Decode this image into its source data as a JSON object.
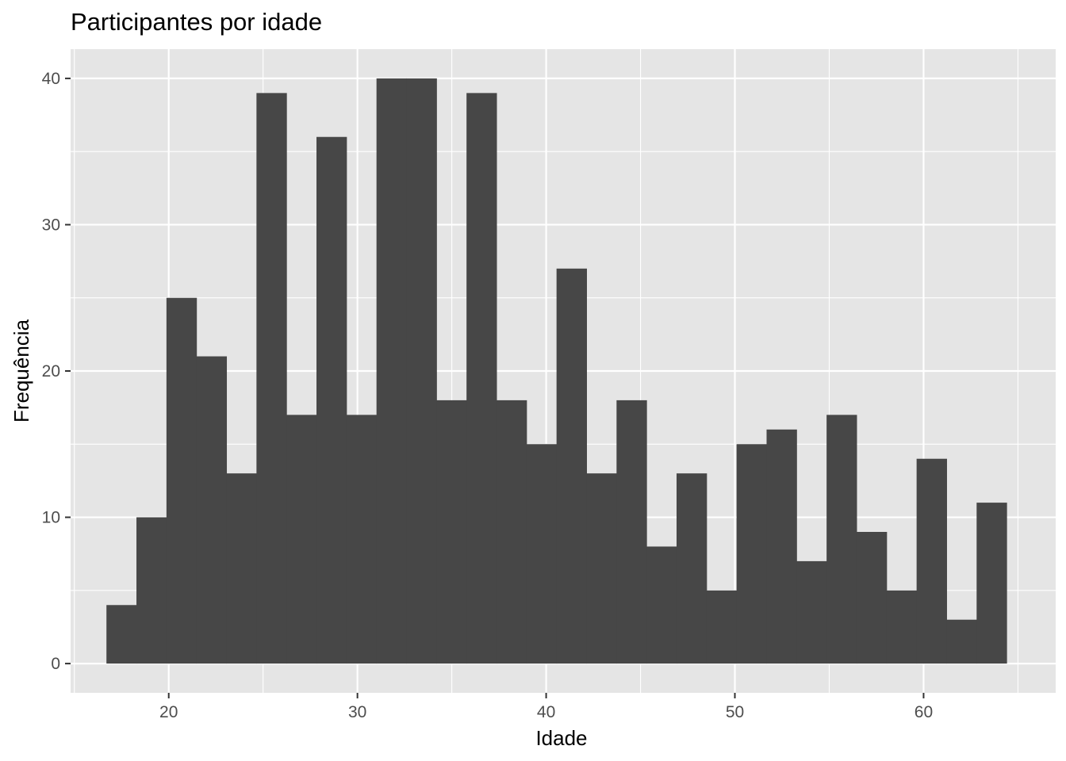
{
  "chart_data": {
    "type": "bar",
    "title": "Participantes por idade",
    "xlabel": "Idade",
    "ylabel": "Frequência",
    "bin_width": 1.59,
    "bin_edges": [
      16.7,
      18.29,
      19.88,
      21.47,
      23.06,
      24.65,
      26.24,
      27.83,
      29.42,
      31.01,
      32.6,
      34.19,
      35.78,
      37.37,
      38.96,
      40.55,
      42.14,
      43.73,
      45.32,
      46.91,
      48.5,
      50.09,
      51.68,
      53.27,
      54.86,
      56.45,
      58.04,
      59.63,
      61.22,
      62.81,
      64.4
    ],
    "values": [
      4,
      10,
      25,
      21,
      13,
      39,
      17,
      36,
      17,
      40,
      40,
      18,
      39,
      18,
      15,
      27,
      13,
      18,
      8,
      13,
      5,
      15,
      16,
      7,
      17,
      9,
      5,
      14,
      3,
      11
    ],
    "xlim": [
      14.8,
      67.0
    ],
    "ylim": [
      -2.0,
      42.0
    ],
    "x_ticks": [
      20,
      30,
      40,
      50,
      60
    ],
    "y_ticks": [
      0,
      10,
      20,
      30,
      40
    ],
    "x_tick_labels": [
      "20",
      "30",
      "40",
      "50",
      "60"
    ],
    "y_tick_labels": [
      "0",
      "10",
      "20",
      "30",
      "40"
    ],
    "grid": true,
    "colors": {
      "bar": "#474747",
      "panel": "#e5e5e5",
      "grid": "#ffffff",
      "tick_label": "#4d4d4d",
      "tick": "#333333"
    }
  }
}
